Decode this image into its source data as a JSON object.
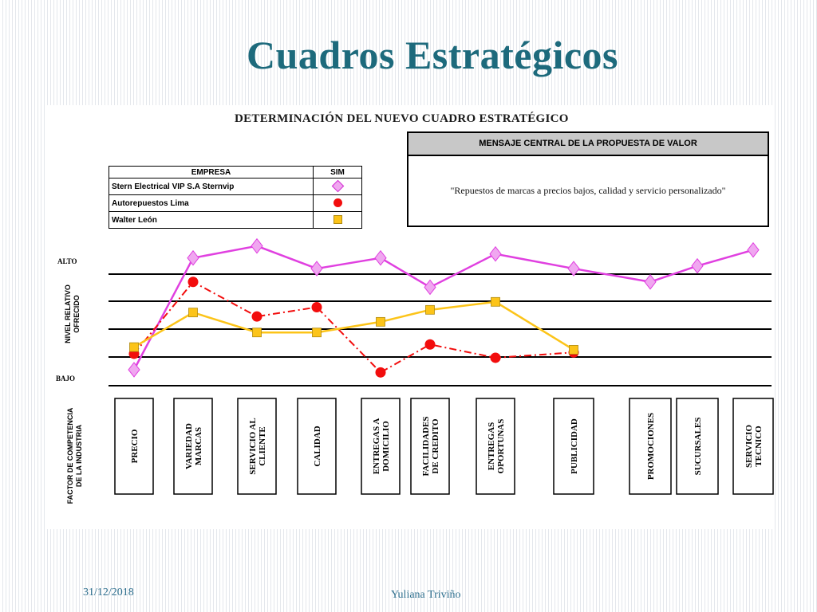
{
  "slide": {
    "title": "Cuadros Estratégicos",
    "footer_date": "31/12/2018",
    "footer_author": "Yuliana Triviño"
  },
  "panel": {
    "heading": "DETERMINACIÓN DEL NUEVO CUADRO ESTRATÉGICO"
  },
  "legend": {
    "col_empresa": "EMPRESA",
    "col_sim": "SIM",
    "rows": [
      {
        "name": "Stern Electrical VIP S.A Sternvip",
        "marker": "diamond",
        "color": "#e040e0"
      },
      {
        "name": "Autorepuestos Lima",
        "marker": "circle",
        "color": "#f20d0d"
      },
      {
        "name": "Walter León",
        "marker": "square",
        "color": "#fcc419"
      }
    ]
  },
  "value_proposition": {
    "header": "MENSAJE CENTRAL DE LA PROPUESTA DE VALOR",
    "text": "\"Repuestos de marcas a precios bajos, calidad y servicio personalizado\""
  },
  "chart_data": {
    "type": "line",
    "ylabel": "NIVEL RELATIVO OFRECIDO",
    "xlabel": "FACTOR DE COMPETENCIA DE LA INDUSTRIA",
    "y_top_label": "ALTO",
    "y_bottom_label": "BAJO",
    "ylim": [
      0,
      5
    ],
    "grid": true,
    "categories": [
      "PRECIO",
      "VARIEDAD MARCAS",
      "SERVICIO AL CLIENTE",
      "CALIDAD",
      "ENTREGAS A DOMICILIO",
      "FACILIDADES DE CREDITO",
      "ENTREGAS OPORTUNAS",
      "PUBLICIDAD",
      "PROMOCIONES",
      "SUCURSALES",
      "SERVICIO TECNICO"
    ],
    "category_ticks": [
      [
        "PRECIO"
      ],
      [
        "VARIEDAD",
        "MARCAS"
      ],
      [
        "SERVICIO AL",
        "CLIENTE"
      ],
      [
        "CALIDAD"
      ],
      [
        "ENTREGAS A",
        "DOMICILIO"
      ],
      [
        "FACILIDADES",
        "DE CREDITO"
      ],
      [
        "ENTREGAS",
        "OPORTUNAS"
      ],
      [
        "PUBLICIDAD"
      ],
      [
        "PROMOCIONES"
      ],
      [
        "SUCURSALES"
      ],
      [
        "SERVICIO",
        "TECNICO"
      ]
    ],
    "series": [
      {
        "name": "Stern Electrical VIP S.A Sternvip",
        "marker": "diamond",
        "line": "solid",
        "color": "#e040e0",
        "fill": "#f0a7f0",
        "values": [
          0.3,
          4.5,
          4.95,
          4.1,
          4.5,
          3.4,
          4.65,
          4.1,
          3.6,
          4.2,
          4.8
        ]
      },
      {
        "name": "Autorepuestos Lima",
        "marker": "circle",
        "line": "dashdot",
        "color": "#f20d0d",
        "fill": "#f20d0d",
        "values": [
          0.9,
          3.6,
          2.3,
          2.65,
          0.2,
          1.25,
          0.75,
          0.95,
          null,
          null,
          null
        ]
      },
      {
        "name": "Walter León",
        "marker": "square",
        "line": "solid",
        "color": "#fcc419",
        "fill": "#fcc419",
        "values": [
          1.15,
          2.45,
          1.7,
          1.7,
          2.1,
          2.55,
          2.85,
          1.05,
          null,
          null,
          null
        ]
      }
    ]
  }
}
